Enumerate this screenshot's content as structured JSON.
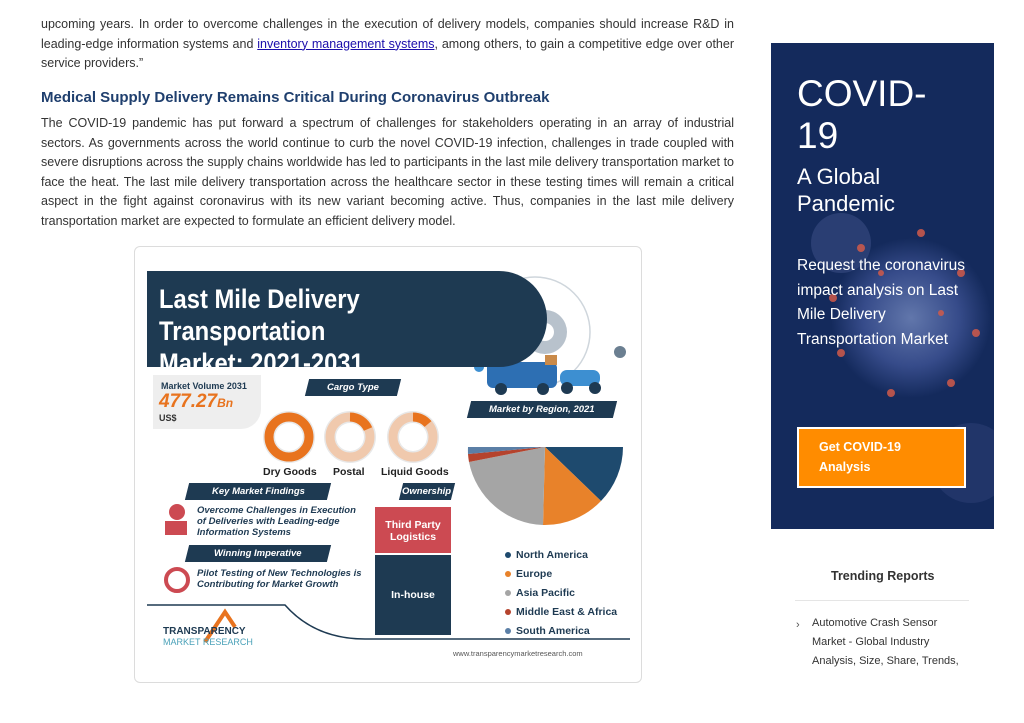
{
  "article": {
    "intro_text_before": "upcoming years. In order to overcome challenges in the execution of delivery models, companies should increase R&D in leading-edge information systems and ",
    "intro_link": "inventory management systems",
    "intro_text_after": ", among others, to gain a competitive edge over other service providers.”",
    "heading": "Medical Supply Delivery Remains Critical During Coronavirus Outbreak",
    "body": "The COVID-19 pandemic has put forward a spectrum of challenges for stakeholders operating in an array of industrial sectors. As governments across the world continue to curb the novel COVID-19 infection, challenges in trade coupled with severe disruptions across the supply chains worldwide has led to participants in the last mile delivery transportation market to face the heat. The last mile delivery transportation across the healthcare sector in these testing times will remain a critical aspect in the fight against coronavirus with its new variant becoming active. Thus, companies in the last mile delivery transportation market are expected to formulate an efficient delivery model."
  },
  "infographic": {
    "title_line1": "Last Mile Delivery Transportation",
    "title_line2": "Market: 2021-2031",
    "market_volume_label": "Market Volume 2031",
    "market_volume_value": "477.27",
    "market_volume_suffix": "Bn",
    "market_volume_unit": "US$",
    "cargo_type_tag": "Cargo Type",
    "cargo_types": [
      "Dry Goods",
      "Postal",
      "Liquid Goods"
    ],
    "region_tag": "Market by Region, 2021",
    "key_findings_tag": "Key Market Findings",
    "finding_1": "Overcome Challenges in Execution of Deliveries with Leading-edge Information Systems",
    "winning_tag": "Winning Imperative",
    "finding_2": "Pilot Testing of New Technologies is Contributing for Market Growth",
    "ownership_tag": "Ownership",
    "ownership_1": "Third Party Logistics",
    "ownership_2": "In-house",
    "regions": [
      {
        "name": "North America",
        "color": "#1e4a6e"
      },
      {
        "name": "Europe",
        "color": "#e8822a"
      },
      {
        "name": "Asia Pacific",
        "color": "#a5a5a5"
      },
      {
        "name": "Middle East & Africa",
        "color": "#b5432d"
      },
      {
        "name": "South America",
        "color": "#5b7fa6"
      }
    ],
    "brand_line1": "TRANSPARENCY",
    "brand_line2": "MARKET RESEARCH",
    "website": "www.transparencymarketresearch.com"
  },
  "sidebar": {
    "covid_title_1": "COVID-",
    "covid_title_2": "19",
    "covid_sub_1": "A Global",
    "covid_sub_2": "Pandemic",
    "covid_request": "Request the coronavirus impact analysis on Last Mile Delivery Transportation Market",
    "covid_button_1": "Get COVID-19",
    "covid_button_2": "Analysis",
    "trending_title": "Trending Reports",
    "trending_item": "Automotive Crash Sensor Market - Global Industry Analysis, Size, Share, Trends,"
  }
}
